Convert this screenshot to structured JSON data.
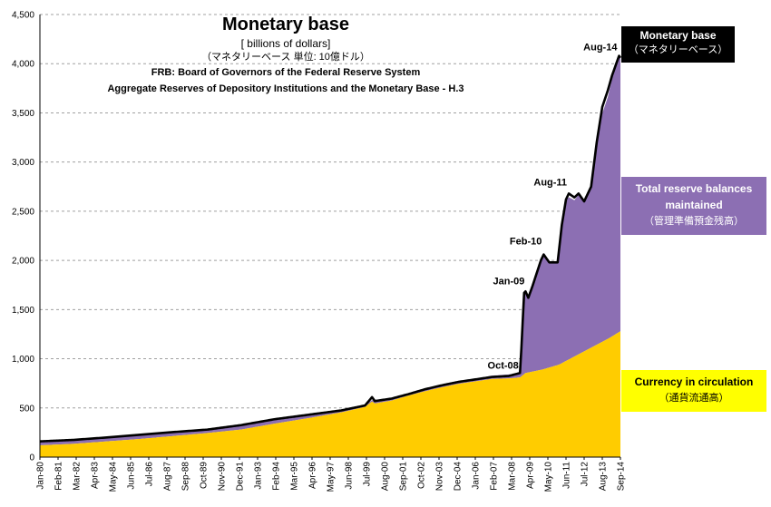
{
  "title": {
    "main": "Monetary base",
    "unit": "[ billions of dollars]",
    "jp": "（マネタリーベース 単位: 10億ドル）",
    "source1": "FRB: Board of Governors of the Federal Reserve System",
    "source2": "Aggregate Reserves of Depository Institutions and the Monetary Base - H.3"
  },
  "legend": {
    "monetary_base": "Monetary base",
    "monetary_base_jp": "（マネタリーベース）",
    "reserves_1": "Total reserve balances",
    "reserves_2": "maintained",
    "reserves_jp": "（管理準備預金残高）",
    "currency": "Currency in circulation",
    "currency_jp": "（通貨流通高）"
  },
  "colors": {
    "currency": "#ffcc00",
    "reserves": "#8c6fb3",
    "monetary_base_line": "#000000",
    "grid": "#a0a0a0"
  },
  "chart_data": {
    "type": "area",
    "stacked": true,
    "x_unit": "month",
    "x_start": "Jan-80",
    "x_end": "Sep-14",
    "ylim": [
      0,
      4500
    ],
    "ytick_step": 500,
    "yticks": [
      "0",
      "500",
      "1,000",
      "1,500",
      "2,000",
      "2,500",
      "3,000",
      "3,500",
      "4,000",
      "4,500"
    ],
    "xticks": [
      "Jan-80",
      "Feb-81",
      "Mar-82",
      "Apr-83",
      "May-84",
      "Jun-85",
      "Jul-86",
      "Aug-87",
      "Sep-88",
      "Oct-89",
      "Nov-90",
      "Dec-91",
      "Jan-93",
      "Feb-94",
      "Mar-95",
      "Apr-96",
      "May-97",
      "Jun-98",
      "Jul-99",
      "Aug-00",
      "Sep-01",
      "Oct-02",
      "Nov-03",
      "Dec-04",
      "Jan-06",
      "Feb-07",
      "Mar-08",
      "Apr-09",
      "May-10",
      "Jun-11",
      "Jul-12",
      "Aug-13",
      "Sep-14"
    ],
    "grid": "horizontal dashed",
    "series": [
      {
        "name": "Currency in circulation",
        "points": [
          [
            "Jan-80",
            120
          ],
          [
            "Jan-82",
            135
          ],
          [
            "Jan-84",
            160
          ],
          [
            "Jan-86",
            185
          ],
          [
            "Jan-88",
            215
          ],
          [
            "Jan-90",
            245
          ],
          [
            "Jan-92",
            280
          ],
          [
            "Jan-94",
            340
          ],
          [
            "Jan-96",
            395
          ],
          [
            "Jan-98",
            455
          ],
          [
            "Jun-99",
            510
          ],
          [
            "Nov-99",
            565
          ],
          [
            "Jan-00",
            545
          ],
          [
            "Jan-01",
            575
          ],
          [
            "Jan-02",
            625
          ],
          [
            "Jan-03",
            670
          ],
          [
            "Jan-04",
            710
          ],
          [
            "Jan-05",
            745
          ],
          [
            "Jan-06",
            770
          ],
          [
            "Jan-07",
            795
          ],
          [
            "Jan-08",
            800
          ],
          [
            "Sep-08",
            810
          ],
          [
            "Jan-09",
            855
          ],
          [
            "Jan-10",
            890
          ],
          [
            "Jan-11",
            940
          ],
          [
            "Jan-12",
            1030
          ],
          [
            "Jan-13",
            1120
          ],
          [
            "Jan-14",
            1210
          ],
          [
            "Sep-14",
            1280
          ]
        ]
      },
      {
        "name": "Total reserve balances maintained",
        "points": [
          [
            "Jan-80",
            40
          ],
          [
            "Jan-85",
            42
          ],
          [
            "Jan-90",
            35
          ],
          [
            "Jan-92",
            45
          ],
          [
            "Jan-95",
            30
          ],
          [
            "Jan-00",
            15
          ],
          [
            "Jan-05",
            20
          ],
          [
            "Sep-08",
            45
          ],
          [
            "Oct-08",
            300
          ],
          [
            "Nov-08",
            550
          ],
          [
            "Dec-08",
            820
          ],
          [
            "Jan-09",
            830
          ],
          [
            "Mar-09",
            760
          ],
          [
            "Jun-09",
            870
          ],
          [
            "Dec-09",
            1120
          ],
          [
            "Feb-10",
            1170
          ],
          [
            "Jun-10",
            1080
          ],
          [
            "Dec-10",
            1040
          ],
          [
            "Mar-11",
            1400
          ],
          [
            "Jun-11",
            1640
          ],
          [
            "Aug-11",
            1650
          ],
          [
            "Dec-11",
            1590
          ],
          [
            "Mar-12",
            1620
          ],
          [
            "Jul-12",
            1530
          ],
          [
            "Dec-12",
            1630
          ],
          [
            "Apr-13",
            2040
          ],
          [
            "Aug-13",
            2320
          ],
          [
            "Dec-13",
            2460
          ],
          [
            "Mar-14",
            2620
          ],
          [
            "Aug-14",
            2800
          ],
          [
            "Sep-14",
            2780
          ]
        ]
      },
      {
        "name": "Monetary base",
        "points": [
          [
            "Jan-80",
            160
          ],
          [
            "Jan-82",
            175
          ],
          [
            "Jan-84",
            200
          ],
          [
            "Jan-86",
            228
          ],
          [
            "Jan-88",
            255
          ],
          [
            "Jan-90",
            280
          ],
          [
            "Jan-92",
            325
          ],
          [
            "Jan-94",
            385
          ],
          [
            "Jan-96",
            430
          ],
          [
            "Jan-98",
            475
          ],
          [
            "Jun-99",
            525
          ],
          [
            "Nov-99",
            610
          ],
          [
            "Jan-00",
            570
          ],
          [
            "Jan-01",
            595
          ],
          [
            "Jan-02",
            640
          ],
          [
            "Jan-03",
            690
          ],
          [
            "Jan-04",
            730
          ],
          [
            "Jan-05",
            765
          ],
          [
            "Jan-06",
            790
          ],
          [
            "Jan-07",
            815
          ],
          [
            "Jan-08",
            825
          ],
          [
            "Sep-08",
            855
          ],
          [
            "Oct-08",
            1100
          ],
          [
            "Nov-08",
            1390
          ],
          [
            "Dec-08",
            1670
          ],
          [
            "Jan-09",
            1685
          ],
          [
            "Mar-09",
            1620
          ],
          [
            "Jun-09",
            1740
          ],
          [
            "Dec-09",
            2000
          ],
          [
            "Feb-10",
            2060
          ],
          [
            "Jun-10",
            1980
          ],
          [
            "Dec-10",
            1980
          ],
          [
            "Mar-11",
            2360
          ],
          [
            "Jun-11",
            2620
          ],
          [
            "Aug-11",
            2680
          ],
          [
            "Dec-11",
            2640
          ],
          [
            "Mar-12",
            2680
          ],
          [
            "Jul-12",
            2600
          ],
          [
            "Dec-12",
            2750
          ],
          [
            "Apr-13",
            3200
          ],
          [
            "Aug-13",
            3560
          ],
          [
            "Dec-13",
            3730
          ],
          [
            "Mar-14",
            3880
          ],
          [
            "Aug-14",
            4080
          ],
          [
            "Sep-14",
            4060
          ]
        ]
      }
    ],
    "annotations": [
      {
        "label": "Oct-08",
        "x": "Oct-08",
        "y": 855
      },
      {
        "label": "Jan-09",
        "x": "Jan-09",
        "y": 1685
      },
      {
        "label": "Feb-10",
        "x": "Feb-10",
        "y": 2060
      },
      {
        "label": "Aug-11",
        "x": "Aug-11",
        "y": 2680
      },
      {
        "label": "Aug-14",
        "x": "Aug-14",
        "y": 4080
      }
    ]
  }
}
